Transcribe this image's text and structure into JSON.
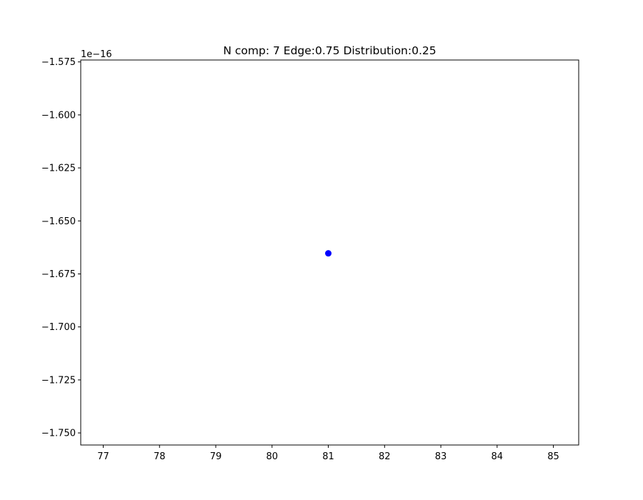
{
  "chart_data": {
    "type": "scatter",
    "title": "N comp: 7 Edge:0.75 Distribution:0.25",
    "xlabel": "",
    "ylabel": "",
    "y_offset_label": "1e−16",
    "xlim": [
      76.6,
      85.45
    ],
    "ylim": [
      -1.7557,
      -1.5741
    ],
    "y_scale_factor": 1e-16,
    "x_ticks": [
      77,
      78,
      79,
      80,
      81,
      82,
      83,
      84,
      85
    ],
    "y_ticks": [
      -1.575,
      -1.6,
      -1.625,
      -1.65,
      -1.675,
      -1.7,
      -1.725,
      -1.75
    ],
    "y_tick_labels": [
      "−1.575",
      "−1.600",
      "−1.625",
      "−1.650",
      "−1.675",
      "−1.700",
      "−1.725",
      "−1.750"
    ],
    "grid": false,
    "series": [
      {
        "color": "#0000ff",
        "marker": "o",
        "points": [
          {
            "x": 81,
            "y": -1.6653
          }
        ]
      }
    ]
  }
}
